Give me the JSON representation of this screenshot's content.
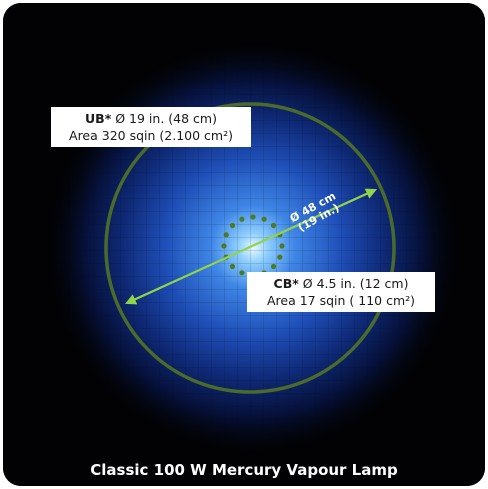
{
  "ub": {
    "prefix": "UB",
    "star": "*",
    "diameter": " Ø 19 in. (48 cm)",
    "area": "Area 320 sqin (2.100 cm²)"
  },
  "cb": {
    "prefix": "CB",
    "star": "*",
    "diameter": " Ø 4.5 in. (12 cm)",
    "area": "Area 17 sqin ( 110 cm²)"
  },
  "dimension": {
    "line1": "Ø 48 cm",
    "line2": "(19 in.)"
  },
  "caption": "Classic 100 W Mercury Vapour Lamp",
  "colors": {
    "background": "#020204",
    "glow_core": "#dff4ff",
    "glow_mid": "#2f6fd8",
    "ring": "#4a6b2a",
    "arrow": "#8fd44a"
  }
}
